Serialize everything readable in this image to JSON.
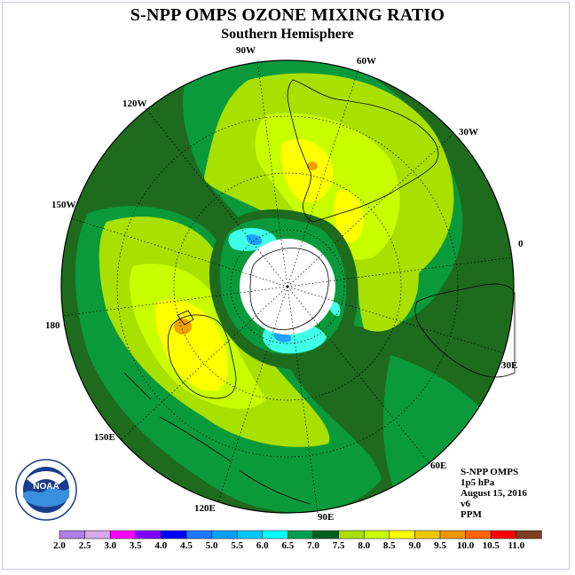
{
  "title": "S-NPP OMPS OZONE MIXING RATIO",
  "subtitle": "Southern Hemisphere",
  "longitude_labels": [
    "90W",
    "60W",
    "30W",
    "0",
    "30E",
    "60E",
    "90E",
    "120E",
    "150E",
    "180",
    "150W",
    "120W"
  ],
  "info": {
    "instrument": "S-NPP OMPS",
    "level": "1p5 hPa",
    "date": "August 15, 2016",
    "version": "v6",
    "units": "PPM"
  },
  "logo": {
    "name": "NOAA",
    "text": "NOAA"
  },
  "colorbar": {
    "labels": [
      "2.0",
      "2.5",
      "3.0",
      "3.5",
      "4.0",
      "4.5",
      "5.0",
      "5.5",
      "6.0",
      "6.5",
      "7.0",
      "7.5",
      "8.0",
      "8.5",
      "9.0",
      "9.5",
      "10.0",
      "10.5",
      "11.0"
    ],
    "colors": [
      "#b07ee8",
      "#d8a8f0",
      "#ff00ff",
      "#7f00ff",
      "#0000ff",
      "#1e78ff",
      "#00a0ff",
      "#00c8ff",
      "#00ffff",
      "#00a050",
      "#006020",
      "#a8e000",
      "#c8ff00",
      "#ffff00",
      "#f0c800",
      "#f09600",
      "#ff6400",
      "#ff0000",
      "#7f4020"
    ]
  },
  "field_colors": {
    "background_dark": "#1e6b1e",
    "mid_green": "#0a9a3c",
    "light_green": "#a8e000",
    "yellow_green": "#c8ff00",
    "yellow": "#ffff00",
    "orange": "#f0a000",
    "cyan": "#40ffe8",
    "blue": "#20a0ff"
  }
}
